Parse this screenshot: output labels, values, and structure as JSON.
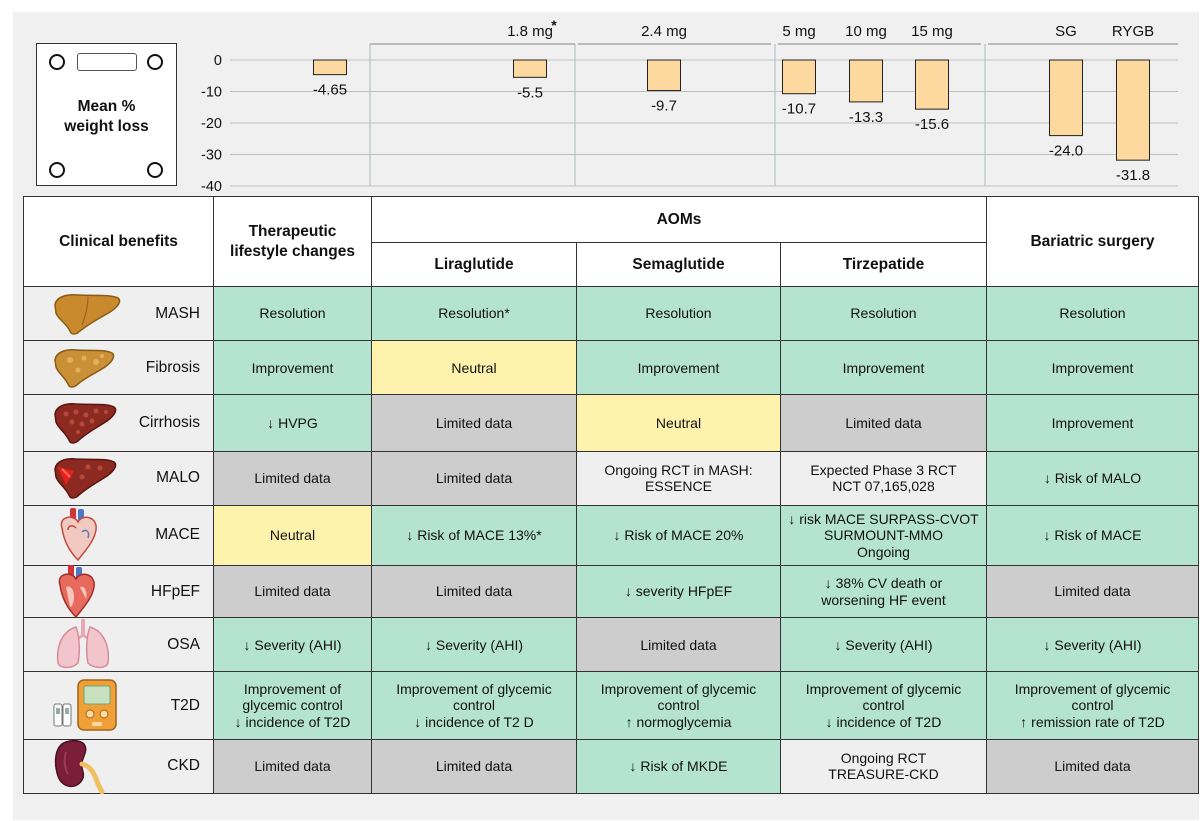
{
  "scale": {
    "title_line1": "Mean %",
    "title_line2": "weight loss"
  },
  "chart_data": {
    "type": "bar",
    "title": "Mean % weight loss",
    "ylim": [
      -40,
      0
    ],
    "yticks": [
      0,
      -10,
      -20,
      -30,
      -40
    ],
    "groups": [
      "Therapeutic lifestyle changes",
      "Liraglutide",
      "Semaglutide",
      "Tirzepatide",
      "Bariatric surgery"
    ],
    "categories": [
      "TLC",
      "1.8 mg*",
      "2.4 mg",
      "5 mg",
      "10 mg",
      "15 mg",
      "SG",
      "RYGB"
    ],
    "category_labels": [
      "",
      "1.8 mg",
      "2.4 mg",
      "5 mg",
      "10 mg",
      "15 mg",
      "SG",
      "RYGB"
    ],
    "asterisk": "*",
    "values": [
      -4.65,
      -5.5,
      -9.7,
      -10.7,
      -13.3,
      -15.6,
      -24.0,
      -31.8
    ],
    "value_labels": [
      "-4.65",
      "-5.5",
      "-9.7",
      "-10.7",
      "-13.3",
      "-15.6",
      "-24.0",
      "-31.8"
    ],
    "bar_color": "#fdd9a0",
    "bar_stroke": "#222222"
  },
  "table": {
    "header_benefits": "Clinical benefits",
    "header_tlc": "Therapeutic lifestyle changes",
    "header_aoms": "AOMs",
    "header_lira": "Liraglutide",
    "header_sema": "Semaglutide",
    "header_tirz": "Tirzepatide",
    "header_bariatric": "Bariatric surgery",
    "rows": [
      {
        "label": "MASH",
        "icon": "liver-icon",
        "cells": [
          {
            "text": "Resolution",
            "color": "green"
          },
          {
            "text": "Resolution*",
            "color": "green"
          },
          {
            "text": "Resolution",
            "color": "green"
          },
          {
            "text": "Resolution",
            "color": "green"
          },
          {
            "text": "Resolution",
            "color": "green"
          }
        ]
      },
      {
        "label": "Fibrosis",
        "icon": "fibrotic-liver-icon",
        "cells": [
          {
            "text": "Improvement",
            "color": "green"
          },
          {
            "text": "Neutral",
            "color": "yellow"
          },
          {
            "text": "Improvement",
            "color": "green"
          },
          {
            "text": "Improvement",
            "color": "green"
          },
          {
            "text": "Improvement",
            "color": "green"
          }
        ]
      },
      {
        "label": "Cirrhosis",
        "icon": "cirrhotic-liver-icon",
        "cells": [
          {
            "text": "↓ HVPG",
            "color": "green"
          },
          {
            "text": "Limited data",
            "color": "gray"
          },
          {
            "text": "Neutral",
            "color": "yellow"
          },
          {
            "text": "Limited data",
            "color": "gray"
          },
          {
            "text": "Improvement",
            "color": "green"
          }
        ]
      },
      {
        "label": "MALO",
        "icon": "liver-outcome-icon",
        "cells": [
          {
            "text": "Limited data",
            "color": "gray"
          },
          {
            "text": "Limited data",
            "color": "gray"
          },
          {
            "text": "Ongoing RCT in MASH:\nESSENCE",
            "color": "light"
          },
          {
            "text": "Expected Phase 3 RCT\nNCT 07,165,028",
            "color": "light"
          },
          {
            "text": "↓ Risk of MALO",
            "color": "green"
          }
        ]
      },
      {
        "label": "MACE",
        "icon": "heart-icon",
        "cells": [
          {
            "text": "Neutral",
            "color": "yellow"
          },
          {
            "text": "↓ Risk of MACE 13%*",
            "color": "green"
          },
          {
            "text": "↓ Risk of MACE 20%",
            "color": "green"
          },
          {
            "text": "↓ risk MACE SURPASS-CVOT\nSURMOUNT-MMO\nOngoing",
            "color": "green"
          },
          {
            "text": "↓ Risk of MACE",
            "color": "green"
          }
        ]
      },
      {
        "label": "HFpEF",
        "icon": "heart-section-icon",
        "cells": [
          {
            "text": "Limited data",
            "color": "gray"
          },
          {
            "text": "Limited data",
            "color": "gray"
          },
          {
            "text": "↓ severity HFpEF",
            "color": "green"
          },
          {
            "text": "↓ 38% CV death or\nworsening HF event",
            "color": "green"
          },
          {
            "text": "Limited data",
            "color": "gray"
          }
        ]
      },
      {
        "label": "OSA",
        "icon": "lungs-icon",
        "cells": [
          {
            "text": "↓ Severity (AHI)",
            "color": "green"
          },
          {
            "text": "↓ Severity (AHI)",
            "color": "green"
          },
          {
            "text": "Limited data",
            "color": "gray"
          },
          {
            "text": "↓ Severity (AHI)",
            "color": "green"
          },
          {
            "text": "↓ Severity (AHI)",
            "color": "green"
          }
        ]
      },
      {
        "label": "T2D",
        "icon": "glucometer-icon",
        "cells": [
          {
            "text": "Improvement of\nglycemic control\n↓ incidence of T2D",
            "color": "green"
          },
          {
            "text": "Improvement of glycemic\ncontrol\n↓ incidence of T2 D",
            "color": "green"
          },
          {
            "text": "Improvement of glycemic\ncontrol\n↑ normoglycemia",
            "color": "green"
          },
          {
            "text": "Improvement of glycemic\ncontrol\n↓ incidence of T2D",
            "color": "green"
          },
          {
            "text": "Improvement of glycemic\ncontrol\n↑ remission rate of T2D",
            "color": "green"
          }
        ]
      },
      {
        "label": "CKD",
        "icon": "kidney-icon",
        "cells": [
          {
            "text": "Limited data",
            "color": "gray"
          },
          {
            "text": "Limited data",
            "color": "gray"
          },
          {
            "text": "↓ Risk of MKDE",
            "color": "green"
          },
          {
            "text": "Ongoing RCT\nTREASURE-CKD",
            "color": "light"
          },
          {
            "text": "Limited data",
            "color": "gray"
          }
        ]
      }
    ]
  }
}
